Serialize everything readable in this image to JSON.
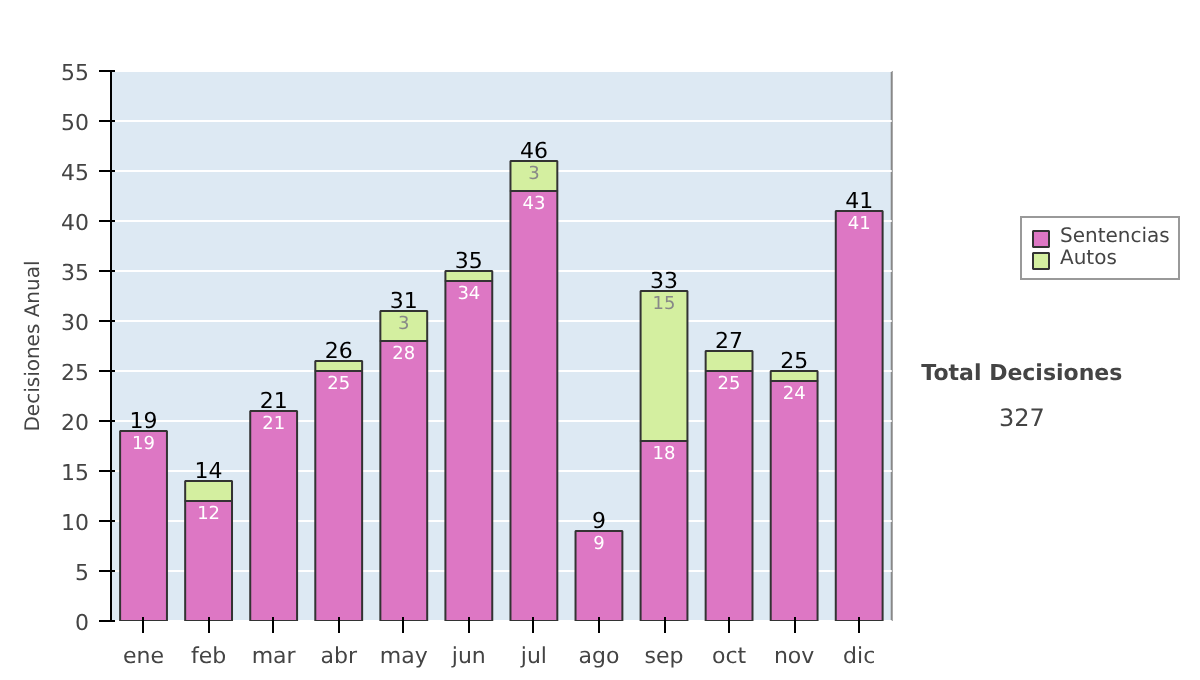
{
  "chart_data": {
    "type": "bar",
    "stacked": true,
    "ylabel": "Decisiones Anual",
    "categories": [
      "ene",
      "feb",
      "mar",
      "abr",
      "may",
      "jun",
      "jul",
      "ago",
      "sep",
      "oct",
      "nov",
      "dic"
    ],
    "series": [
      {
        "name": "Sentencias",
        "color": "#dd77c4",
        "values": [
          19,
          12,
          21,
          25,
          28,
          34,
          43,
          9,
          18,
          25,
          24,
          41
        ],
        "value_labels": [
          "19",
          "12",
          "21",
          "25",
          "28",
          "34",
          "43",
          "9",
          "18",
          "25",
          "24",
          "41"
        ]
      },
      {
        "name": "Autos",
        "color": "#d4efa0",
        "values": [
          0,
          2,
          0,
          1,
          3,
          1,
          3,
          0,
          15,
          2,
          1,
          0
        ],
        "value_labels": [
          null,
          null,
          null,
          null,
          "3",
          null,
          "3",
          null,
          "15",
          null,
          null,
          null
        ]
      }
    ],
    "totals": [
      "19",
      "14",
      "21",
      "26",
      "31",
      "35",
      "46",
      "9",
      "33",
      "27",
      "25",
      "41"
    ],
    "ylim": [
      0,
      55
    ],
    "yticks": [
      0,
      5,
      10,
      15,
      20,
      25,
      30,
      35,
      40,
      45,
      50,
      55
    ],
    "grid": "y",
    "legend": "right",
    "annotations": [
      "Total Decisiones",
      "327"
    ]
  }
}
